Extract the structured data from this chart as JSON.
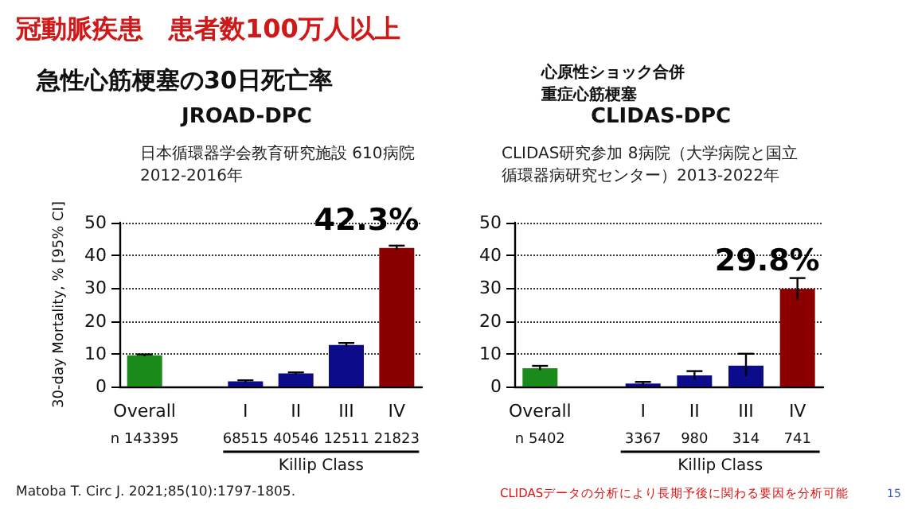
{
  "chart_data": [
    {
      "type": "bar",
      "title": "急性心筋梗塞の30日死亡率",
      "subtitle": "JROAD-DPC",
      "ylabel": "30-day Mortality, % [95% CI]",
      "xlabel": "Killip Class",
      "categories": [
        "Overall",
        null,
        "I",
        "II",
        "III",
        "IV"
      ],
      "values": [
        9.5,
        null,
        1.6,
        4.0,
        12.7,
        42.3
      ],
      "colors": [
        "#1a8a1a",
        "#1a8a1a",
        "#0c0c8a",
        "#0c0c8a",
        "#0c0c8a",
        "#8a0000"
      ],
      "errors": [
        0.3,
        null,
        0.3,
        0.3,
        0.6,
        0.7
      ],
      "ylim": [
        0,
        50
      ],
      "yticks": [
        0,
        10,
        20,
        30,
        40,
        50
      ],
      "grid": "y",
      "annotations": [
        "冠動脈疾患　患者数100万人以上",
        "日本循環器学会教育研究施設 610病院",
        "2012-2016年",
        {
          "text": "42.3%",
          "x": "IV",
          "y": 42.3
        },
        "n 143395",
        "68515",
        "40546",
        "12511",
        "21823",
        "Matoba T. Circ J. 2021;85(10):1797-1805."
      ]
    },
    {
      "type": "bar",
      "title": "CLIDAS-DPC",
      "subtitle": "心原性ショック合併重症心筋梗塞",
      "xlabel": "Killip Class",
      "categories": [
        "Overall",
        null,
        "I",
        "II",
        "III",
        "IV"
      ],
      "values": [
        5.6,
        null,
        0.9,
        3.4,
        6.4,
        29.8
      ],
      "colors": [
        "#1a8a1a",
        "#1a8a1a",
        "#0c0c8a",
        "#0c0c8a",
        "#0c0c8a",
        "#8a0000"
      ],
      "errors": [
        [
          5.0,
          6.3
        ],
        null,
        [
          0.5,
          1.4
        ],
        [
          2.2,
          4.7
        ],
        [
          3.2,
          10.0
        ],
        [
          26.6,
          33.1
        ]
      ],
      "ylim": [
        0,
        50
      ],
      "yticks": [
        0,
        10,
        20,
        30,
        40,
        50
      ],
      "grid": "y",
      "annotations": [
        "CLIDAS研究参加 8病院（大学病院と国立循環器病研究センター）2013-2022年",
        {
          "text": "29.8%",
          "x": "IV",
          "y": 29.8
        },
        "n 5402",
        "3367",
        "980",
        "314",
        "741",
        "CLIDASデータの分析により長期予後に関わる要因を分析可能",
        "15"
      ]
    }
  ]
}
